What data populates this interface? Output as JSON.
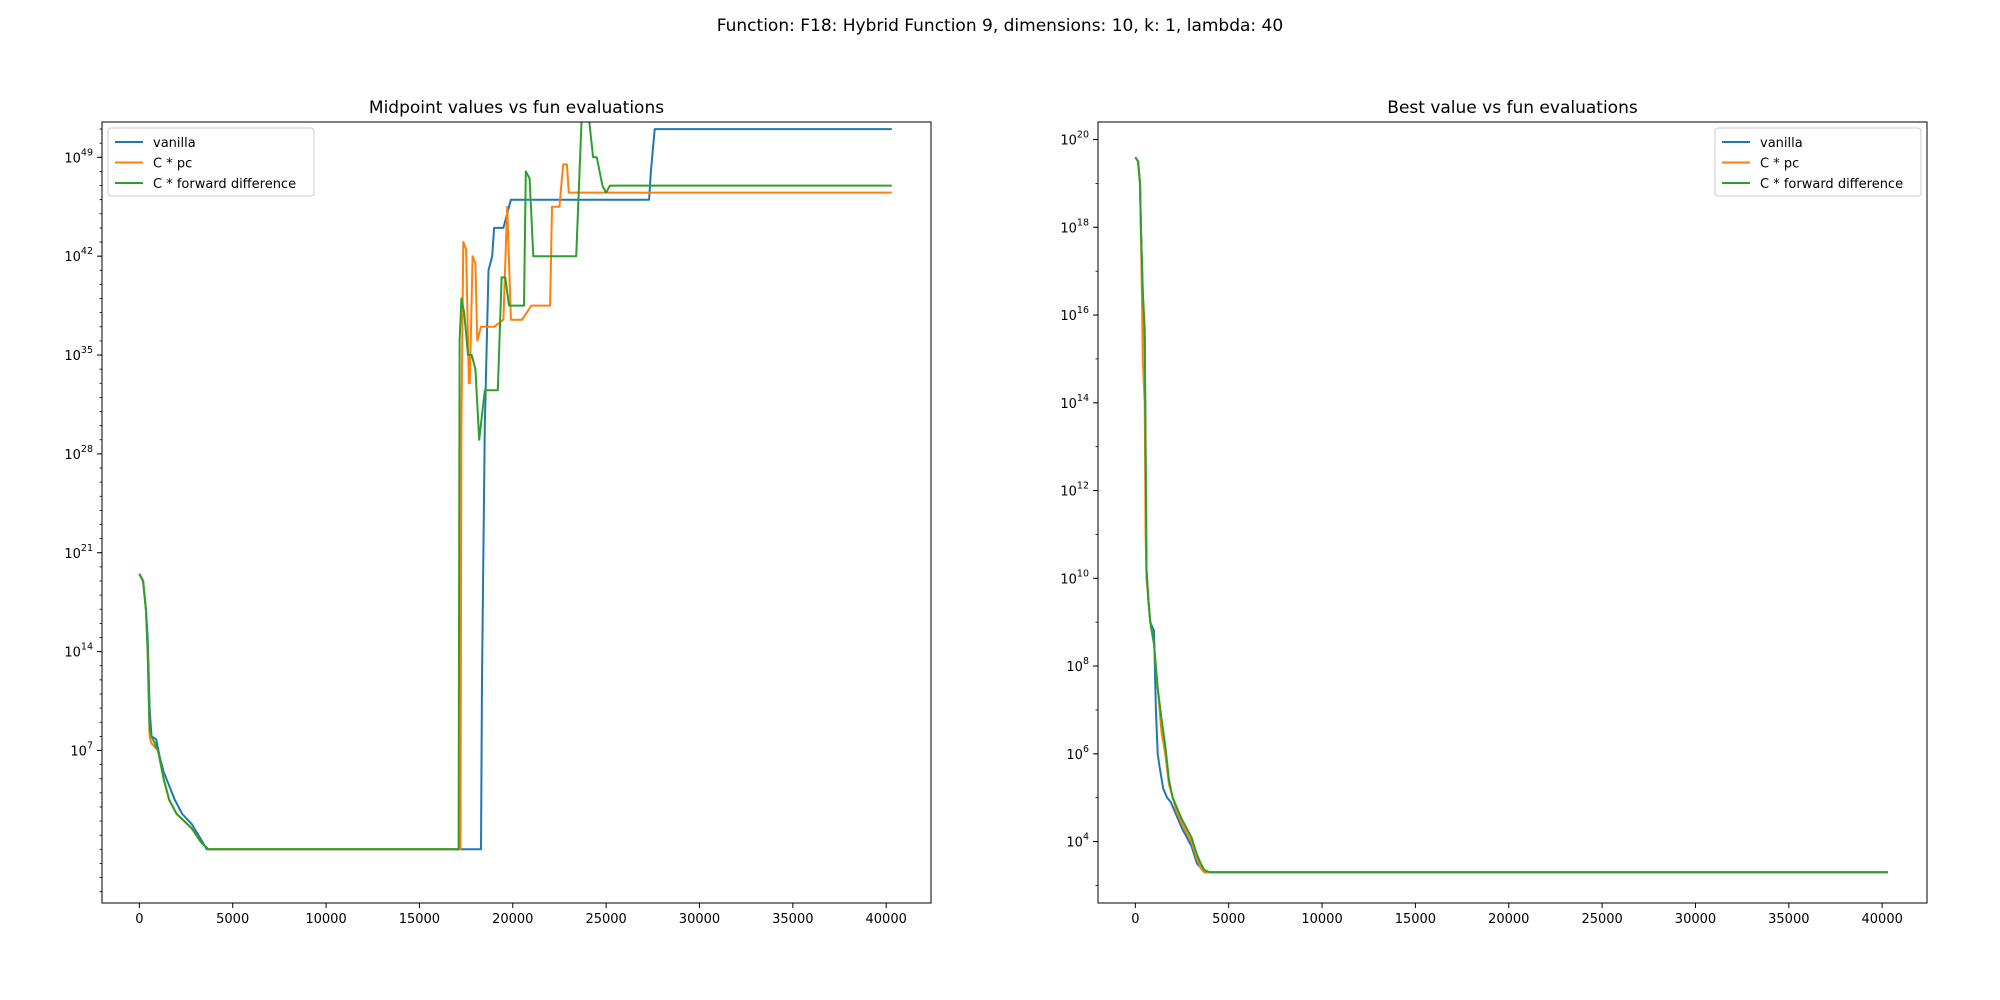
{
  "suptitle": "Function: F18: Hybrid Function 9, dimensions: 10, k: 1, lambda: 40",
  "chart_data": [
    {
      "type": "line",
      "title": "Midpoint values vs fun evaluations",
      "xlabel": "",
      "ylabel": "",
      "yscale": "log",
      "xlim": [
        -2000,
        42400
      ],
      "ylim_log10": [
        -3.8,
        51.5
      ],
      "xticks": [
        0,
        5000,
        10000,
        15000,
        20000,
        25000,
        30000,
        35000,
        40000
      ],
      "yticks": [
        {
          "exp": 7,
          "base": "10",
          "sup": "7"
        },
        {
          "exp": 14,
          "base": "10",
          "sup": "14"
        },
        {
          "exp": 21,
          "base": "10",
          "sup": "21"
        },
        {
          "exp": 28,
          "base": "10",
          "sup": "28"
        },
        {
          "exp": 35,
          "base": "10",
          "sup": "35"
        },
        {
          "exp": 42,
          "base": "10",
          "sup": "42"
        },
        {
          "exp": 49,
          "base": "10",
          "sup": "49"
        }
      ],
      "grid": false,
      "legend_position": "upper left",
      "series": [
        {
          "name": "vanilla",
          "color": "#1f77b4",
          "x": [
            0,
            200,
            350,
            450,
            550,
            650,
            900,
            1100,
            1300,
            1600,
            1900,
            2300,
            2800,
            3300,
            3600,
            3800,
            4000,
            10000,
            18300,
            18350,
            18500,
            18700,
            18900,
            19000,
            19200,
            19500,
            19700,
            19900,
            20500,
            20700,
            21200,
            27300,
            27400,
            27600,
            30000,
            40300
          ],
          "y_log10": [
            19.5,
            19.0,
            17.0,
            15.0,
            10.0,
            8.0,
            7.8,
            6.5,
            5.5,
            4.5,
            3.5,
            2.5,
            1.8,
            0.7,
            0.0,
            0.0,
            0.0,
            0.0,
            0.0,
            12.0,
            30.0,
            41.0,
            42.0,
            44.0,
            44.0,
            44.0,
            45.0,
            46.0,
            46.0,
            46.0,
            46.0,
            46.0,
            48.0,
            51.0,
            51.0,
            51.0
          ]
        },
        {
          "name": "C * pc",
          "color": "#ff7f0e",
          "x": [
            0,
            200,
            350,
            450,
            550,
            650,
            1000,
            1300,
            1600,
            2000,
            2400,
            2800,
            3300,
            3700,
            4000,
            10000,
            17200,
            17250,
            17350,
            17500,
            17650,
            17700,
            17850,
            18000,
            18100,
            18300,
            18500,
            19000,
            19500,
            19700,
            19900,
            20500,
            21000,
            22000,
            22100,
            22500,
            22700,
            22900,
            23000,
            23500,
            25000,
            30000,
            40300
          ],
          "y_log10": [
            19.5,
            19.0,
            17.0,
            14.0,
            8.0,
            7.5,
            7.0,
            5.0,
            3.5,
            2.5,
            2.0,
            1.5,
            0.5,
            0.0,
            0.0,
            0.0,
            0.0,
            30.0,
            43.0,
            42.5,
            33.0,
            33.0,
            42.0,
            41.5,
            36.0,
            37.0,
            37.0,
            37.0,
            37.5,
            45.5,
            37.5,
            37.5,
            38.5,
            38.5,
            45.5,
            45.5,
            48.5,
            48.5,
            46.5,
            46.5,
            46.5,
            46.5,
            46.5
          ]
        },
        {
          "name": "C * forward difference",
          "color": "#2ca02c",
          "x": [
            0,
            200,
            350,
            450,
            550,
            650,
            1000,
            1300,
            1600,
            2000,
            2400,
            2800,
            3300,
            3700,
            4000,
            10000,
            17100,
            17150,
            17250,
            17400,
            17600,
            17800,
            18000,
            18200,
            18500,
            19200,
            19400,
            19600,
            19800,
            20000,
            20600,
            20700,
            20900,
            21100,
            21400,
            22500,
            22800,
            23400,
            23700,
            23800,
            24100,
            24300,
            24500,
            24800,
            25000,
            25200,
            25500,
            30000,
            40300
          ],
          "y_log10": [
            19.5,
            19.0,
            17.0,
            14.0,
            8.5,
            8.0,
            7.0,
            5.0,
            3.5,
            2.5,
            2.0,
            1.5,
            0.5,
            0.0,
            0.0,
            0.0,
            0.0,
            36.0,
            39.0,
            38.0,
            35.0,
            35.0,
            34.0,
            29.0,
            32.5,
            32.5,
            40.5,
            40.5,
            38.5,
            38.5,
            38.5,
            48.0,
            47.5,
            42.0,
            42.0,
            42.0,
            42.0,
            42.0,
            52.0,
            52.0,
            51.5,
            49.0,
            49.0,
            47.0,
            46.5,
            47.0,
            47.0,
            47.0,
            47.0
          ]
        }
      ]
    },
    {
      "type": "line",
      "title": "Best value vs fun evaluations",
      "xlabel": "",
      "ylabel": "",
      "yscale": "log",
      "xlim": [
        -2000,
        42400
      ],
      "ylim_log10": [
        2.6,
        20.4
      ],
      "xticks": [
        0,
        5000,
        10000,
        15000,
        20000,
        25000,
        30000,
        35000,
        40000
      ],
      "yticks": [
        {
          "exp": 4,
          "base": "10",
          "sup": "4"
        },
        {
          "exp": 6,
          "base": "10",
          "sup": "6"
        },
        {
          "exp": 8,
          "base": "10",
          "sup": "8"
        },
        {
          "exp": 10,
          "base": "10",
          "sup": "10"
        },
        {
          "exp": 12,
          "base": "10",
          "sup": "12"
        },
        {
          "exp": 14,
          "base": "10",
          "sup": "14"
        },
        {
          "exp": 16,
          "base": "10",
          "sup": "16"
        },
        {
          "exp": 18,
          "base": "10",
          "sup": "18"
        },
        {
          "exp": 20,
          "base": "10",
          "sup": "20"
        }
      ],
      "grid": false,
      "legend_position": "upper right",
      "series": [
        {
          "name": "vanilla",
          "color": "#1f77b4",
          "x": [
            0,
            150,
            250,
            300,
            400,
            500,
            600,
            700,
            800,
            1000,
            1100,
            1200,
            1300,
            1500,
            1700,
            1900,
            2200,
            2500,
            3000,
            3300,
            3500,
            3700,
            4000,
            5000,
            10000,
            40300
          ],
          "y_log10": [
            19.6,
            19.5,
            19.0,
            18.0,
            16.5,
            15.5,
            10.2,
            9.5,
            9.0,
            8.8,
            7.0,
            6.0,
            5.7,
            5.2,
            5.0,
            4.9,
            4.6,
            4.3,
            3.9,
            3.5,
            3.4,
            3.3,
            3.3,
            3.3,
            3.3,
            3.3
          ]
        },
        {
          "name": "C * pc",
          "color": "#ff7f0e",
          "x": [
            0,
            150,
            250,
            300,
            400,
            450,
            500,
            550,
            600,
            700,
            800,
            1000,
            1200,
            1400,
            1600,
            1800,
            2000,
            2200,
            2500,
            3000,
            3300,
            3500,
            3700,
            4000,
            5000,
            10000,
            40300
          ],
          "y_log10": [
            19.6,
            19.5,
            19.0,
            18.0,
            15.0,
            14.5,
            14.0,
            11.0,
            10.0,
            9.5,
            9.0,
            8.5,
            7.5,
            6.5,
            6.0,
            5.3,
            5.0,
            4.7,
            4.4,
            4.0,
            3.6,
            3.4,
            3.3,
            3.3,
            3.3,
            3.3,
            3.3
          ]
        },
        {
          "name": "C * forward difference",
          "color": "#2ca02c",
          "x": [
            0,
            150,
            250,
            300,
            400,
            500,
            600,
            700,
            800,
            1000,
            1200,
            1400,
            1600,
            1800,
            2000,
            2200,
            2500,
            3000,
            3300,
            3500,
            3700,
            4000,
            5000,
            10000,
            40300
          ],
          "y_log10": [
            19.6,
            19.5,
            19.0,
            18.0,
            16.5,
            15.7,
            10.2,
            9.5,
            9.0,
            8.5,
            7.5,
            6.8,
            6.2,
            5.4,
            5.0,
            4.8,
            4.5,
            4.1,
            3.7,
            3.5,
            3.35,
            3.3,
            3.3,
            3.3,
            3.3
          ]
        }
      ]
    }
  ]
}
